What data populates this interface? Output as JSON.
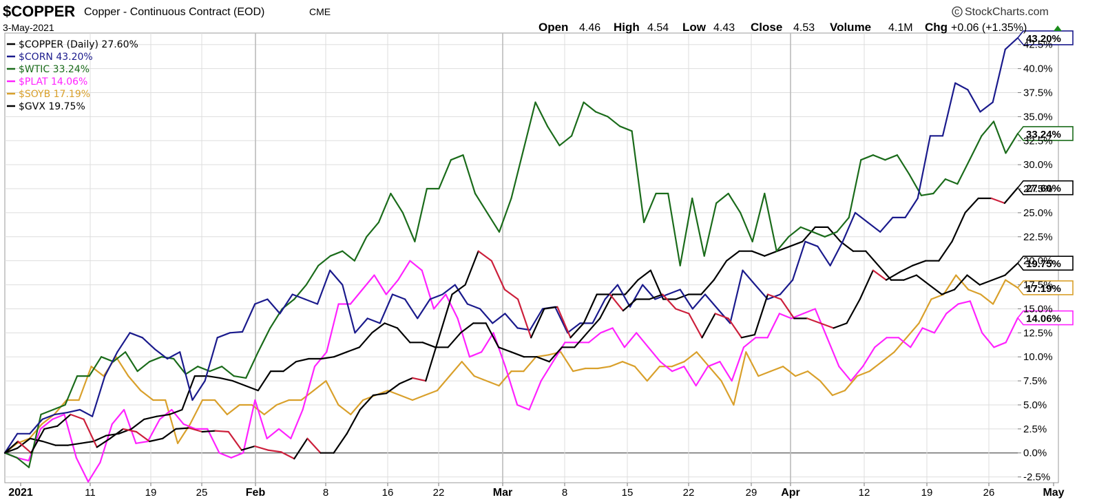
{
  "header": {
    "symbol": "$COPPER",
    "description": "Copper - Continuous Contract (EOD)",
    "exchange": "CME",
    "date": "3-May-2021",
    "copyright": "StockCharts.com",
    "ohlc": {
      "open_label": "Open",
      "open": "4.46",
      "high_label": "High",
      "high": "4.54",
      "low_label": "Low",
      "low": "4.43",
      "close_label": "Close",
      "close": "4.53",
      "volume_label": "Volume",
      "volume": "4.1M",
      "chg_label": "Chg",
      "chg": "+0.06 (+1.35%)"
    }
  },
  "legend": [
    {
      "label": "$COPPER (Daily) 27.60%",
      "color": "#000000"
    },
    {
      "label": "$CORN 43.20%",
      "color": "#1a1a8c"
    },
    {
      "label": "$WTIC 33.24%",
      "color": "#1a6b1a"
    },
    {
      "label": "$PLAT 14.06%",
      "color": "#ff22ff"
    },
    {
      "label": "$SOYB 17.19%",
      "color": "#d9a02b"
    },
    {
      "label": "$GVX 19.75%",
      "color": "#000000"
    }
  ],
  "chart_data": {
    "type": "line",
    "x_tick_labels": [
      "2021",
      "11",
      "19",
      "25",
      "Feb",
      "8",
      "16",
      "22",
      "Mar",
      "8",
      "15",
      "22",
      "29",
      "Apr",
      "12",
      "19",
      "26",
      "May"
    ],
    "y_tick_labels": [
      "-2.5%",
      "0.0%",
      "2.5%",
      "5.0%",
      "7.5%",
      "10.0%",
      "12.5%",
      "15.0%",
      "17.5%",
      "20.0%",
      "22.5%",
      "25.0%",
      "27.5%",
      "30.0%",
      "32.5%",
      "35.0%",
      "37.5%",
      "40.0%",
      "42.5%"
    ],
    "ylim": [
      -3.1,
      43.7
    ],
    "grid": true,
    "series": [
      {
        "name": "$COPPER",
        "color": "#000000",
        "down_color": "#cc1f3b",
        "end_label": "27.60%",
        "values": [
          0.0,
          1.2,
          0.0,
          2.5,
          2.8,
          4.0,
          3.5,
          0.6,
          1.5,
          2.5,
          2.2,
          1.2,
          1.5,
          2.5,
          2.6,
          2.2,
          2.3,
          2.2,
          0.3,
          0.7,
          0.3,
          0.1,
          -0.6,
          1.5,
          0.0,
          0.0,
          2.0,
          4.5,
          6.0,
          6.2,
          7.2,
          7.8,
          7.5,
          12.0,
          16.5,
          17.5,
          21.0,
          20.0,
          17.0,
          16.0,
          12.0,
          15.0,
          15.2,
          12.0,
          13.5,
          16.5,
          16.5,
          14.8,
          16.0,
          16.0,
          16.5,
          15.0,
          14.5,
          12.0,
          14.5,
          14.0,
          12.0,
          12.3,
          16.5,
          16.0,
          14.0,
          14.0,
          13.5,
          13.0,
          13.5,
          16.0,
          19.0,
          18.0,
          18.8,
          19.5,
          20.0,
          20.0,
          22.0,
          25.0,
          26.5,
          26.5,
          26.0,
          27.6
        ]
      },
      {
        "name": "$CORN",
        "color": "#1a1a8c",
        "end_label": "43.20%",
        "values": [
          0.0,
          2.0,
          2.0,
          3.5,
          4.0,
          4.2,
          4.5,
          3.8,
          8.0,
          10.5,
          12.5,
          12.0,
          10.8,
          9.8,
          10.5,
          5.5,
          7.5,
          12.0,
          12.5,
          12.6,
          15.5,
          16.0,
          14.5,
          16.5,
          16.0,
          15.5,
          19.0,
          17.5,
          12.5,
          14.0,
          13.5,
          16.5,
          16.0,
          14.0,
          16.0,
          16.5,
          17.5,
          15.5,
          15.0,
          13.5,
          14.5,
          13.0,
          12.8,
          15.0,
          15.2,
          12.5,
          13.5,
          13.5,
          16.0,
          17.5,
          15.2,
          17.5,
          16.0,
          16.5,
          17.0,
          15.0,
          16.5,
          15.0,
          13.5,
          19.0,
          17.5,
          16.0,
          16.5,
          18.0,
          22.0,
          21.5,
          19.5,
          22.0,
          25.0,
          24.0,
          23.0,
          24.5,
          24.5,
          26.5,
          33.0,
          33.0,
          38.5,
          37.8,
          35.5,
          36.5,
          42.0,
          43.2
        ]
      },
      {
        "name": "$WTIC",
        "color": "#1a6b1a",
        "end_label": "33.24%",
        "values": [
          0.0,
          -0.5,
          -1.5,
          4.0,
          4.5,
          5.0,
          8.0,
          8.0,
          10.0,
          9.5,
          10.5,
          8.5,
          9.5,
          10.0,
          9.8,
          8.2,
          9.0,
          8.5,
          9.0,
          8.0,
          7.8,
          10.5,
          13.0,
          15.0,
          16.0,
          17.5,
          19.5,
          20.5,
          21.0,
          20.0,
          22.5,
          24.0,
          27.0,
          25.0,
          22.0,
          27.5,
          27.5,
          30.5,
          31.0,
          27.0,
          25.0,
          23.0,
          26.5,
          31.5,
          36.5,
          34.0,
          32.0,
          33.0,
          36.5,
          35.5,
          35.0,
          34.0,
          33.5,
          24.0,
          27.0,
          27.0,
          19.5,
          26.5,
          20.5,
          26.0,
          27.0,
          25.0,
          22.0,
          27.0,
          21.0,
          22.5,
          23.5,
          23.0,
          22.5,
          23.0,
          24.5,
          30.5,
          31.0,
          30.5,
          31.0,
          29.0,
          26.8,
          27.0,
          28.5,
          28.0,
          30.5,
          33.0,
          34.5,
          31.2,
          33.24
        ]
      },
      {
        "name": "$PLAT",
        "color": "#ff22ff",
        "end_label": "14.06%",
        "values": [
          0.0,
          -0.5,
          -0.8,
          2.5,
          3.5,
          4.0,
          -0.5,
          -3.0,
          -1.0,
          3.0,
          4.5,
          1.0,
          1.2,
          3.5,
          4.5,
          3.0,
          2.5,
          2.5,
          0.0,
          -0.5,
          0.0,
          5.5,
          1.5,
          2.5,
          1.5,
          4.5,
          9.0,
          10.5,
          15.5,
          15.5,
          17.0,
          18.5,
          16.5,
          18.0,
          20.0,
          19.0,
          15.0,
          16.5,
          14.0,
          10.0,
          10.5,
          12.5,
          9.0,
          5.0,
          4.5,
          7.5,
          9.5,
          11.5,
          11.5,
          11.5,
          12.5,
          13.0,
          11.0,
          12.5,
          11.0,
          9.5,
          8.5,
          9.0,
          7.0,
          9.0,
          9.5,
          7.5,
          11.0,
          12.0,
          12.0,
          14.5,
          14.0,
          14.5,
          15.0,
          12.0,
          9.0,
          7.5,
          9.0,
          11.0,
          12.0,
          12.0,
          11.0,
          13.0,
          12.5,
          14.5,
          15.5,
          15.8,
          12.5,
          11.0,
          11.5,
          14.06
        ]
      },
      {
        "name": "$SOYB",
        "color": "#d9a02b",
        "end_label": "17.19%",
        "values": [
          0.0,
          1.0,
          1.5,
          3.0,
          4.0,
          5.5,
          5.5,
          9.0,
          8.0,
          10.0,
          8.0,
          6.5,
          5.5,
          5.5,
          1.0,
          3.0,
          5.5,
          5.5,
          4.0,
          5.0,
          5.0,
          4.0,
          5.0,
          5.5,
          5.5,
          6.5,
          7.5,
          5.0,
          4.0,
          5.5,
          6.0,
          6.5,
          6.0,
          5.5,
          6.0,
          6.5,
          8.0,
          9.5,
          8.0,
          7.5,
          7.0,
          8.5,
          8.5,
          10.0,
          10.2,
          10.5,
          8.5,
          8.8,
          8.8,
          9.0,
          9.5,
          9.0,
          7.5,
          9.0,
          9.0,
          9.5,
          10.5,
          9.0,
          7.5,
          5.0,
          10.5,
          8.0,
          8.5,
          9.0,
          8.0,
          8.5,
          7.5,
          6.0,
          6.5,
          8.0,
          8.5,
          9.5,
          10.5,
          12.0,
          13.5,
          16.0,
          16.5,
          18.5,
          17.0,
          16.5,
          15.5,
          18.0,
          17.19
        ]
      },
      {
        "name": "$GVX",
        "color": "#000000",
        "end_label": "19.75%",
        "values": [
          0.0,
          0.5,
          1.5,
          1.2,
          0.8,
          0.8,
          1.0,
          1.2,
          1.8,
          2.0,
          2.5,
          3.5,
          3.8,
          4.0,
          4.5,
          8.0,
          8.0,
          7.8,
          7.5,
          7.0,
          6.5,
          8.5,
          8.5,
          9.5,
          9.8,
          9.8,
          10.0,
          10.5,
          11.0,
          12.5,
          13.5,
          13.0,
          11.5,
          11.5,
          11.0,
          11.0,
          12.5,
          13.5,
          13.5,
          11.0,
          10.5,
          10.0,
          10.0,
          9.5,
          11.0,
          11.0,
          12.5,
          14.0,
          16.5,
          16.5,
          18.0,
          19.0,
          16.0,
          16.0,
          16.5,
          16.5,
          18.0,
          20.0,
          21.0,
          21.0,
          20.5,
          21.0,
          21.5,
          22.0,
          23.5,
          23.5,
          22.0,
          21.0,
          21.0,
          19.5,
          18.0,
          18.0,
          18.5,
          17.5,
          16.5,
          17.0,
          18.5,
          17.5,
          18.0,
          18.5,
          19.75
        ]
      }
    ]
  }
}
